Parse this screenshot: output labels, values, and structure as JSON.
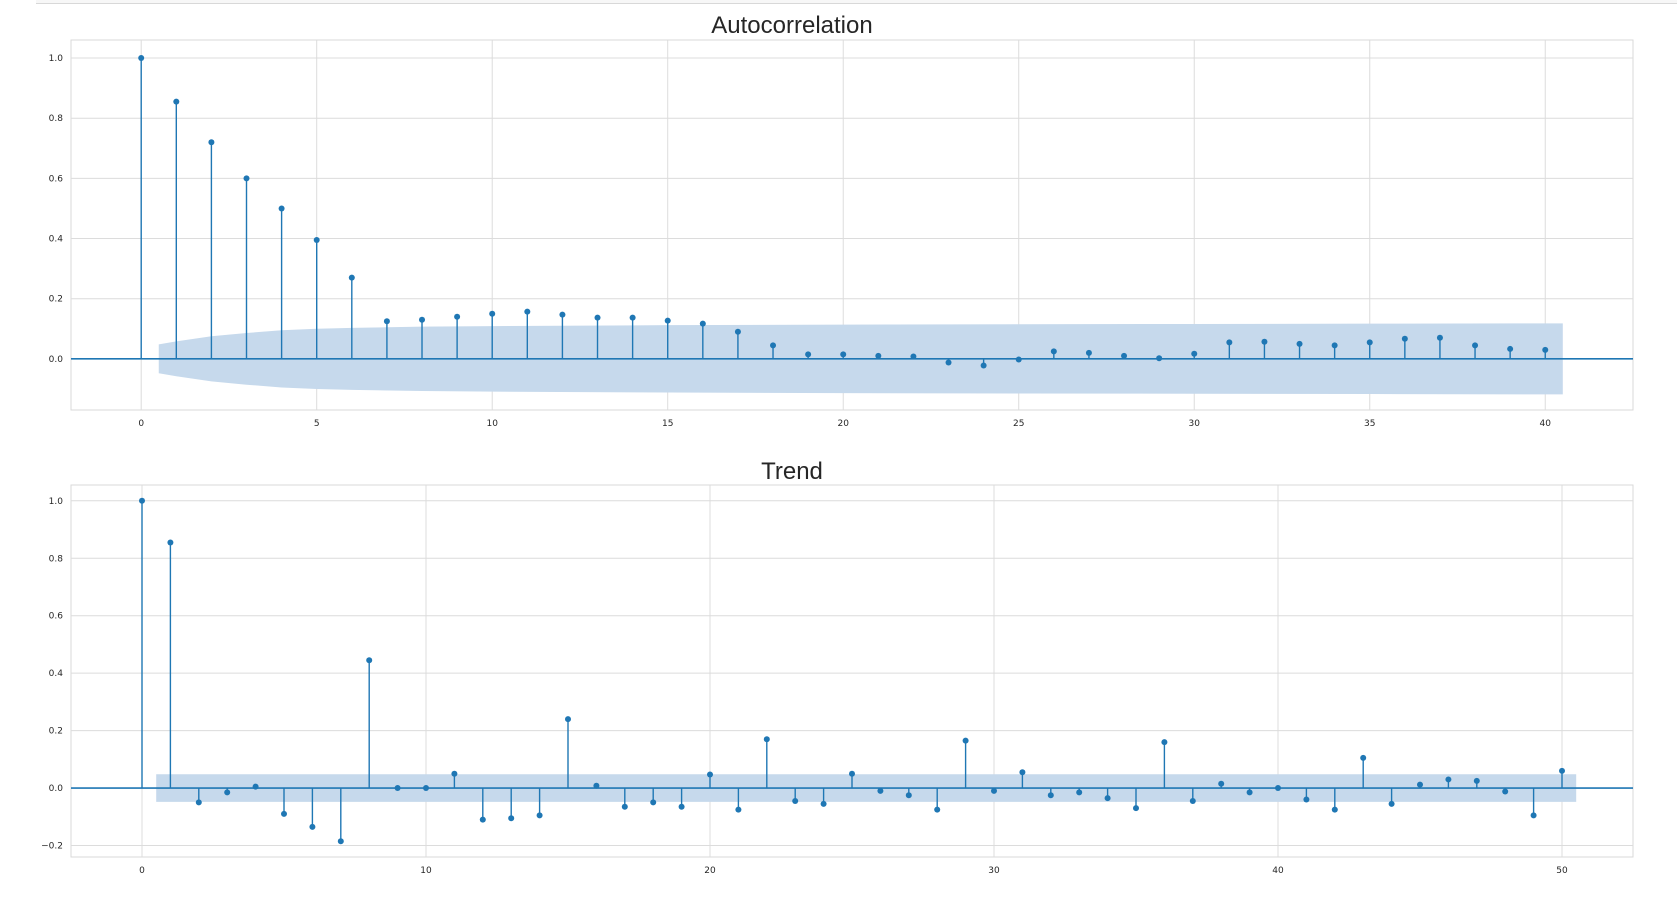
{
  "chart_data": [
    {
      "type": "stem",
      "title": "Autocorrelation",
      "xlabel": "",
      "ylabel": "",
      "xlim": [
        -2,
        42.5
      ],
      "ylim": [
        -0.17,
        1.06
      ],
      "xticks": [
        0,
        5,
        10,
        15,
        20,
        25,
        30,
        35,
        40
      ],
      "xtick_labels": [
        "0",
        "5",
        "10",
        "15",
        "20",
        "25",
        "30",
        "35",
        "40"
      ],
      "yticks": [
        0.0,
        0.2,
        0.4,
        0.6,
        0.8,
        1.0
      ],
      "ytick_labels": [
        "0.0",
        "0.2",
        "0.4",
        "0.6",
        "0.8",
        "1.0"
      ],
      "grid": true,
      "marker_color": "#1f77b4",
      "band_color": "#c6d9ec",
      "lags": [
        0,
        1,
        2,
        3,
        4,
        5,
        6,
        7,
        8,
        9,
        10,
        11,
        12,
        13,
        14,
        15,
        16,
        17,
        18,
        19,
        20,
        21,
        22,
        23,
        24,
        25,
        26,
        27,
        28,
        29,
        30,
        31,
        32,
        33,
        34,
        35,
        36,
        37,
        38,
        39,
        40
      ],
      "values": [
        1.0,
        0.855,
        0.72,
        0.6,
        0.5,
        0.395,
        0.27,
        0.125,
        0.13,
        0.14,
        0.15,
        0.157,
        0.147,
        0.137,
        0.137,
        0.127,
        0.117,
        0.09,
        0.045,
        0.015,
        0.015,
        0.01,
        0.008,
        -0.012,
        -0.022,
        -0.002,
        0.025,
        0.02,
        0.01,
        0.002,
        0.017,
        0.055,
        0.057,
        0.05,
        0.045,
        0.055,
        0.067,
        0.07,
        0.045,
        0.033,
        0.03
      ],
      "confidence_band": {
        "x": [
          0.5,
          1,
          2,
          3,
          4,
          5,
          6,
          8,
          10,
          15,
          20,
          25,
          30,
          35,
          40,
          40.5
        ],
        "upper": [
          0.048,
          0.058,
          0.075,
          0.086,
          0.095,
          0.1,
          0.103,
          0.107,
          0.109,
          0.112,
          0.114,
          0.115,
          0.116,
          0.117,
          0.118,
          0.118
        ]
      }
    },
    {
      "type": "stem",
      "title": "Trend",
      "xlabel": "",
      "ylabel": "",
      "xlim": [
        -2.5,
        52.5
      ],
      "ylim": [
        -0.24,
        1.055
      ],
      "xticks": [
        0,
        10,
        20,
        30,
        40,
        50
      ],
      "xtick_labels": [
        "0",
        "10",
        "20",
        "30",
        "40",
        "50"
      ],
      "yticks": [
        -0.2,
        0.0,
        0.2,
        0.4,
        0.6,
        0.8,
        1.0
      ],
      "ytick_labels": [
        "−0.2",
        "0.0",
        "0.2",
        "0.4",
        "0.6",
        "0.8",
        "1.0"
      ],
      "grid": true,
      "marker_color": "#1f77b4",
      "band_color": "#c6d9ec",
      "lags": [
        0,
        1,
        2,
        3,
        4,
        5,
        6,
        7,
        8,
        9,
        10,
        11,
        12,
        13,
        14,
        15,
        16,
        17,
        18,
        19,
        20,
        21,
        22,
        23,
        24,
        25,
        26,
        27,
        28,
        29,
        30,
        31,
        32,
        33,
        34,
        35,
        36,
        37,
        38,
        39,
        40,
        41,
        42,
        43,
        44,
        45,
        46,
        47,
        48,
        49,
        50
      ],
      "values": [
        1.0,
        0.855,
        -0.05,
        -0.015,
        0.005,
        -0.09,
        -0.135,
        -0.185,
        0.445,
        0.0,
        0.0,
        0.05,
        -0.11,
        -0.105,
        -0.095,
        0.24,
        0.008,
        -0.065,
        -0.05,
        -0.065,
        0.047,
        -0.075,
        0.17,
        -0.045,
        -0.055,
        0.05,
        -0.01,
        -0.025,
        -0.075,
        0.165,
        -0.01,
        0.055,
        -0.025,
        -0.015,
        -0.035,
        -0.07,
        0.16,
        -0.045,
        0.015,
        -0.015,
        0.0,
        -0.04,
        -0.075,
        0.105,
        -0.055,
        0.012,
        0.03,
        0.025,
        -0.012,
        -0.095,
        0.06
      ],
      "confidence_band": {
        "x": [
          0.5,
          50.5
        ],
        "upper": [
          0.048,
          0.048
        ]
      }
    }
  ]
}
